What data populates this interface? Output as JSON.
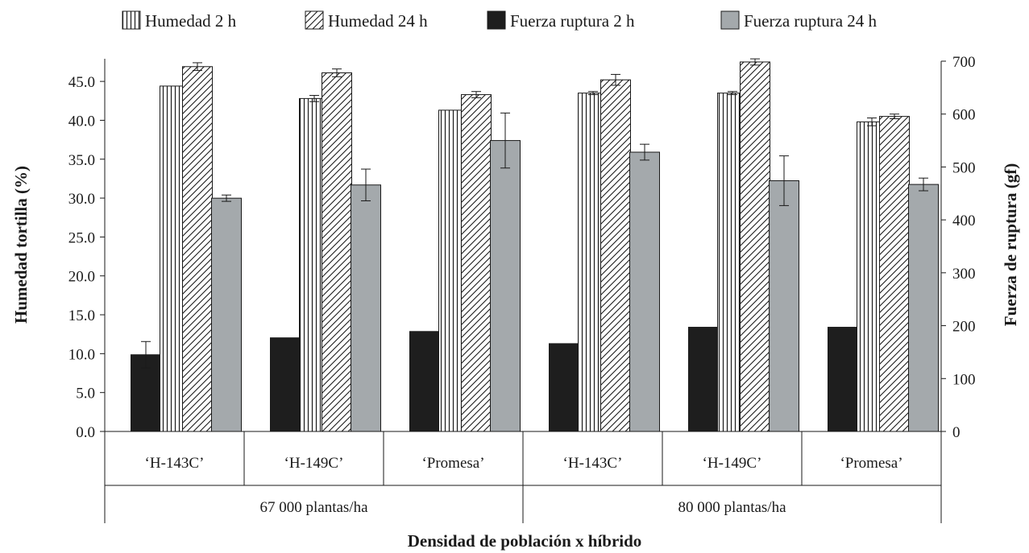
{
  "chart_data": {
    "type": "bar",
    "title": "",
    "xlabel": "Densidad de población x híbrido",
    "ylabel_left": "Humedad tortilla (%)",
    "ylabel_right": "Fuerza de ruptura (gf)",
    "ylim_left": [
      0,
      47.6
    ],
    "ylim_right": [
      0,
      700
    ],
    "yticks_left": [
      "0.0",
      "5.0",
      "10.0",
      "15.0",
      "20.0",
      "25.0",
      "30.0",
      "35.0",
      "40.0",
      "45.0"
    ],
    "yticks_right": [
      "0",
      "100",
      "200",
      "300",
      "400",
      "500",
      "600",
      "700"
    ],
    "categories": [
      "‘H-143C’",
      "‘H-149C’",
      "‘Promesa’",
      "‘H-143C’",
      "‘H-149C’",
      "‘Promesa’"
    ],
    "groups": [
      {
        "label": "67 000 plantas/ha",
        "span": [
          0,
          2
        ]
      },
      {
        "label": "80 000 plantas/ha",
        "span": [
          3,
          5
        ]
      }
    ],
    "legend_position": "top",
    "series": [
      {
        "name": "Fuerza ruptura 2 h",
        "axis": "right",
        "color": "#1e1e1e",
        "pattern": "solid",
        "values": [
          145,
          177,
          189,
          166,
          197,
          197
        ],
        "errors": [
          25,
          0,
          0,
          0,
          0,
          0
        ]
      },
      {
        "name": "Humedad 2 h",
        "axis": "left",
        "color": "#ffffff",
        "pattern": "vertical",
        "values": [
          44.4,
          42.8,
          41.3,
          43.5,
          43.5,
          39.8
        ],
        "errors": [
          0.0,
          0.4,
          0.0,
          0.2,
          0.2,
          0.5
        ]
      },
      {
        "name": "Humedad 24 h",
        "axis": "left",
        "color": "#ffffff",
        "pattern": "diagonal",
        "values": [
          46.9,
          46.1,
          43.3,
          45.2,
          47.5,
          40.5
        ],
        "errors": [
          0.5,
          0.5,
          0.4,
          0.7,
          0.4,
          0.3
        ]
      },
      {
        "name": "Fuerza ruptura 24 h",
        "axis": "right",
        "color": "#a4a9ac",
        "pattern": "solid",
        "values": [
          441,
          466,
          550,
          528,
          474,
          467
        ],
        "errors": [
          6,
          30,
          52,
          15,
          47,
          12
        ]
      }
    ]
  },
  "legend": [
    {
      "label": "Humedad 2 h",
      "pattern": "vertical"
    },
    {
      "label": "Humedad 24 h",
      "pattern": "diagonal"
    },
    {
      "label": "Fuerza ruptura 2 h",
      "pattern": "solid-black"
    },
    {
      "label": "Fuerza ruptura 24 h",
      "pattern": "solid-gray"
    }
  ]
}
